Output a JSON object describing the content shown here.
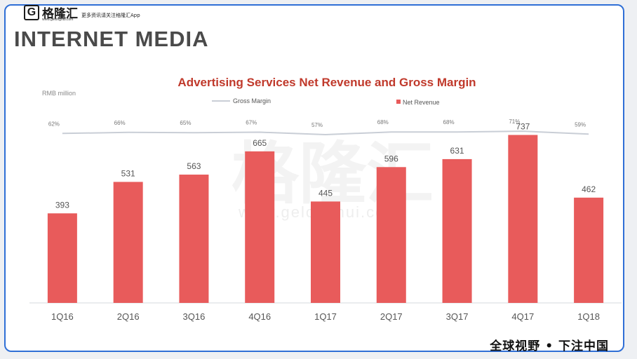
{
  "header": {
    "logo_letter": "G",
    "logo_name": "格隆汇",
    "logo_url": "www.gelonghui.com",
    "tagline": "更多资讯请关注格隆汇App"
  },
  "slide_title": "INTERNET MEDIA",
  "footer_slogan": "全球视野 • 下注中国",
  "watermark": {
    "text": "格隆汇",
    "url": "www.gelonghui.com"
  },
  "chart_data": {
    "type": "bar",
    "title": "Advertising Services Net Revenue and Gross Margin",
    "unit_label": "RMB million",
    "categories": [
      "1Q16",
      "2Q16",
      "3Q16",
      "4Q16",
      "1Q17",
      "2Q17",
      "3Q17",
      "4Q17",
      "1Q18"
    ],
    "series": [
      {
        "name": "Net Revenue",
        "type": "bar",
        "color": "#e85b5b",
        "values": [
          393,
          531,
          563,
          665,
          445,
          596,
          631,
          737,
          462
        ],
        "labels": [
          "393",
          "531",
          "563",
          "665",
          "445",
          "596",
          "631",
          "737",
          "462"
        ]
      },
      {
        "name": "Gross Margin",
        "type": "line",
        "color": "#c9ced6",
        "values": [
          62,
          66,
          65,
          67,
          57,
          68,
          68,
          71,
          59
        ],
        "labels": [
          "62%",
          "66%",
          "65%",
          "67%",
          "57%",
          "68%",
          "68%",
          "71%",
          "59%"
        ]
      }
    ],
    "ylim": [
      0,
      800
    ],
    "legend_position": "top",
    "grid": false
  }
}
